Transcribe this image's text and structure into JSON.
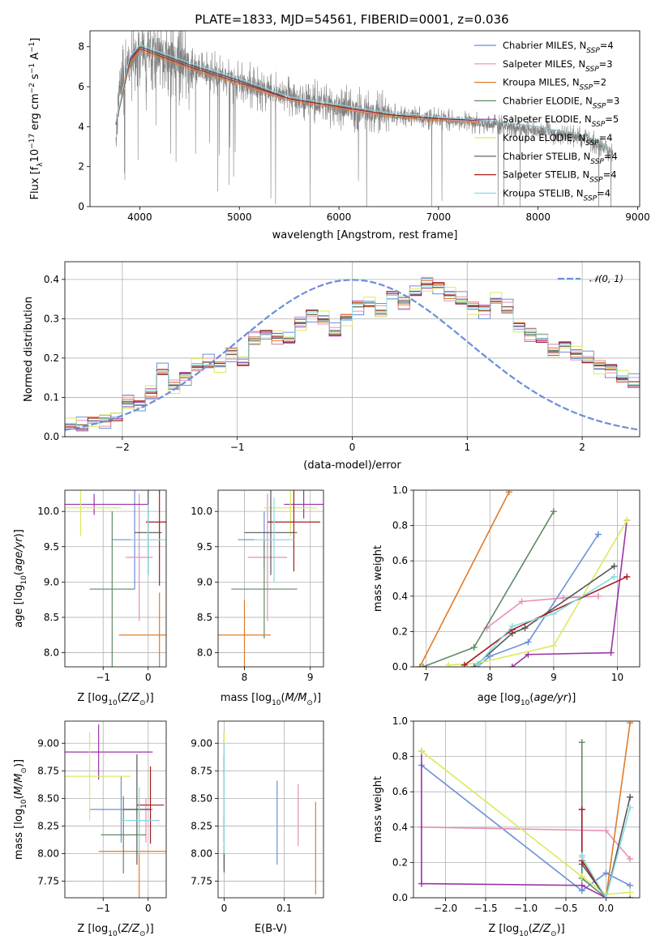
{
  "figure_title": "PLATE=1833, MJD=54561, FIBERID=0001, z=0.036",
  "colors": [
    "#6b8fd8",
    "#e68fb8",
    "#e07b2a",
    "#5f8a63",
    "#9a34a8",
    "#d9ea5e",
    "#555555",
    "#a61c1c",
    "#8adbe3"
  ],
  "chart_data": [
    {
      "id": "spectrum",
      "type": "line",
      "xlabel": "wavelength [Angstrom, rest frame]",
      "ylabel": "Flux [f$_\\lambda$10$^{-17}$ erg cm$^{-2}$ s$^{-1}$ A$^{-1}$]",
      "ylabel_main": "Flux [f",
      "ylabel_parts": [
        "λ",
        "10",
        "−17",
        " erg cm",
        "−2",
        " s",
        "−1",
        " A",
        "−1",
        "]"
      ],
      "xlim": [
        3500,
        9020
      ],
      "ylim": [
        0,
        8.8
      ],
      "xticks": [
        4000,
        5000,
        6000,
        7000,
        8000,
        9000
      ],
      "yticks": [
        0,
        2,
        4,
        6,
        8
      ],
      "legend_placement": "upper-right",
      "data_series": {
        "name": "data",
        "color": "#808080",
        "x": [
          3760,
          3800,
          3900,
          4000,
          4200,
          4500,
          5000,
          5500,
          6000,
          6500,
          7000,
          7400,
          7600,
          8000,
          8500,
          8750
        ],
        "y": [
          3.5,
          6.0,
          7.2,
          8.0,
          7.6,
          7.0,
          6.2,
          5.5,
          5.0,
          4.6,
          4.4,
          4.2,
          4.1,
          3.8,
          3.4,
          2.7
        ]
      },
      "models": [
        {
          "name": "Chabrier MILES",
          "nssp": "4",
          "x": [
            3760,
            3900,
            4000,
            4500,
            5000,
            5500,
            6000,
            6500,
            7000,
            7400
          ],
          "y": [
            4.2,
            7.4,
            8.0,
            7.1,
            6.3,
            5.4,
            5.0,
            4.6,
            4.4,
            4.3
          ]
        },
        {
          "name": "Salpeter MILES",
          "nssp": "3",
          "x": [
            3760,
            3900,
            4000,
            4500,
            5000,
            5500,
            6000,
            6500,
            7000,
            7400
          ],
          "y": [
            4.2,
            7.3,
            7.9,
            7.0,
            6.2,
            5.3,
            4.9,
            4.6,
            4.4,
            4.2
          ]
        },
        {
          "name": "Kroupa MILES",
          "nssp": "2",
          "x": [
            3760,
            3900,
            4000,
            4500,
            5000,
            5500,
            6000,
            6500,
            7000,
            7400
          ],
          "y": [
            4.1,
            7.2,
            7.8,
            6.9,
            6.1,
            5.3,
            4.9,
            4.5,
            4.3,
            4.2
          ]
        },
        {
          "name": "Chabrier ELODIE",
          "nssp": "3",
          "x": [
            3760,
            3900,
            4000,
            4500,
            5000,
            5500,
            6000,
            6500,
            6800
          ],
          "y": [
            4.1,
            7.3,
            7.9,
            7.0,
            6.2,
            5.4,
            5.0,
            4.6,
            4.5
          ]
        },
        {
          "name": "Salpeter ELODIE",
          "nssp": "5",
          "x": [
            3760,
            3900,
            4000,
            4500,
            5000,
            5500,
            6000,
            6500,
            6800
          ],
          "y": [
            4.1,
            7.4,
            8.0,
            7.1,
            6.3,
            5.4,
            5.0,
            4.6,
            4.5
          ]
        },
        {
          "name": "Kroupa ELODIE",
          "nssp": "4",
          "x": [
            3760,
            3900,
            4000,
            4500,
            5000,
            5500,
            6000,
            6500,
            6800
          ],
          "y": [
            4.2,
            7.3,
            7.9,
            7.0,
            6.2,
            5.4,
            5.0,
            4.6,
            4.5
          ]
        },
        {
          "name": "Chabrier STELIB",
          "nssp": "4",
          "x": [
            3760,
            3900,
            4000,
            4500,
            5000,
            5500,
            6000,
            6500,
            7000,
            7500,
            8000,
            8500,
            8750
          ],
          "y": [
            4.2,
            7.3,
            8.0,
            7.1,
            6.3,
            5.4,
            5.0,
            4.6,
            4.4,
            4.3,
            4.0,
            3.5,
            2.8
          ]
        },
        {
          "name": "Salpeter STELIB",
          "nssp": "4",
          "x": [
            3760,
            3900,
            4000,
            4500,
            5000,
            5500,
            6000,
            6500,
            7000,
            7500,
            8000,
            8500,
            8750
          ],
          "y": [
            4.2,
            7.3,
            7.9,
            7.0,
            6.2,
            5.4,
            5.0,
            4.6,
            4.4,
            4.3,
            4.0,
            3.5,
            2.8
          ]
        },
        {
          "name": "Kroupa STELIB",
          "nssp": "4",
          "x": [
            3760,
            3900,
            4000,
            4500,
            5000,
            5500,
            6000,
            6500,
            7000,
            7500,
            8000,
            8500,
            8750
          ],
          "y": [
            4.2,
            7.5,
            8.1,
            7.2,
            6.4,
            5.5,
            5.1,
            4.7,
            4.5,
            4.3,
            4.0,
            3.5,
            2.8
          ]
        }
      ]
    },
    {
      "id": "residuals",
      "type": "histogram",
      "xlabel": "(data-model)/error",
      "ylabel": "Normed distribution",
      "xlim": [
        -2.5,
        2.5
      ],
      "ylim": [
        0,
        0.445
      ],
      "xticks": [
        -2,
        -1,
        0,
        1,
        2
      ],
      "yticks": [
        0.0,
        0.1,
        0.2,
        0.3,
        0.4
      ],
      "grid": true,
      "legend_placement": "upper-right",
      "reference_curve": {
        "name": "𝒩(0, 1)",
        "color": "#6b8fd8"
      },
      "bin_start": -2.5,
      "bin_width": 0.1,
      "base_values": [
        0.03,
        0.03,
        0.04,
        0.04,
        0.05,
        0.09,
        0.08,
        0.11,
        0.17,
        0.13,
        0.15,
        0.18,
        0.19,
        0.18,
        0.21,
        0.19,
        0.25,
        0.26,
        0.25,
        0.25,
        0.29,
        0.31,
        0.3,
        0.27,
        0.3,
        0.33,
        0.34,
        0.32,
        0.36,
        0.34,
        0.37,
        0.39,
        0.38,
        0.36,
        0.35,
        0.33,
        0.32,
        0.35,
        0.33,
        0.28,
        0.26,
        0.25,
        0.22,
        0.23,
        0.21,
        0.2,
        0.18,
        0.17,
        0.15,
        0.14,
        0.12,
        0.11,
        0.09,
        0.08,
        0.06,
        0.05,
        0.04,
        0.03,
        0.03,
        0.02,
        0.02,
        0.02,
        0.01
      ],
      "series_offsets": [
        0.02,
        -0.015,
        0.01,
        -0.01,
        0.015,
        -0.02,
        0.0,
        0.012,
        -0.008
      ]
    },
    {
      "id": "age-vs-Z",
      "type": "errorbar",
      "xlabel": "Z [log$_{10}$(Z/Z$_\\odot$)]",
      "ylabel": "age  [log$_{10}$(age/yr)]",
      "xlim": [
        -1.85,
        0.4
      ],
      "ylim": [
        7.8,
        10.3
      ],
      "xticks": [
        -1,
        0
      ],
      "yticks": [
        8.0,
        8.5,
        9.0,
        9.5,
        10.0
      ],
      "grid": true,
      "points": [
        {
          "x": -0.3,
          "y": 9.6,
          "xerr": 0.5,
          "yerr": 0.7
        },
        {
          "x": -0.2,
          "y": 9.35,
          "xerr": 0.3,
          "yerr": 0.9
        },
        {
          "x": 0.25,
          "y": 8.25,
          "xerr": 0.9,
          "yerr": 0.6
        },
        {
          "x": -0.8,
          "y": 8.9,
          "xerr": 0.5,
          "yerr": 1.1
        },
        {
          "x": -1.2,
          "y": 10.1,
          "xerr": 1.2,
          "yerr": 0.15
        },
        {
          "x": -1.5,
          "y": 10.05,
          "xerr": 0.9,
          "yerr": 0.4
        },
        {
          "x": 0.0,
          "y": 9.7,
          "xerr": 0.3,
          "yerr": 0.6
        },
        {
          "x": 0.25,
          "y": 9.85,
          "xerr": 0.3,
          "yerr": 0.9
        },
        {
          "x": 0.0,
          "y": 9.6,
          "xerr": 0.4,
          "yerr": 0.5
        }
      ]
    },
    {
      "id": "age-vs-mass",
      "type": "errorbar",
      "xlabel": "mass [log$_{10}$(M/M$_\\odot$)]",
      "ylabel": "",
      "xlim": [
        7.6,
        9.2
      ],
      "ylim": [
        7.8,
        10.3
      ],
      "xticks": [
        8,
        9
      ],
      "yticks": [
        8.0,
        8.5,
        9.0,
        9.5,
        10.0
      ],
      "grid": true,
      "points": [
        {
          "x": 8.3,
          "y": 9.6,
          "xerr": 0.4,
          "yerr": 0.4
        },
        {
          "x": 8.35,
          "y": 9.35,
          "xerr": 0.3,
          "yerr": 0.9
        },
        {
          "x": 8.0,
          "y": 8.25,
          "xerr": 0.4,
          "yerr": 0.5
        },
        {
          "x": 8.3,
          "y": 8.9,
          "xerr": 0.5,
          "yerr": 0.7
        },
        {
          "x": 8.9,
          "y": 10.1,
          "xerr": 0.3,
          "yerr": 0.2
        },
        {
          "x": 8.7,
          "y": 10.05,
          "xerr": 0.4,
          "yerr": 0.4
        },
        {
          "x": 8.4,
          "y": 9.7,
          "xerr": 0.4,
          "yerr": 0.6
        },
        {
          "x": 8.75,
          "y": 9.85,
          "xerr": 0.4,
          "yerr": 0.7
        },
        {
          "x": 8.45,
          "y": 9.6,
          "xerr": 0.3,
          "yerr": 0.6
        }
      ]
    },
    {
      "id": "mass-weight-vs-age",
      "type": "line",
      "xlabel": "age  [log$_{10}$(age/yr)]",
      "ylabel": "mass weight",
      "xlim": [
        6.8,
        10.35
      ],
      "ylim": [
        0,
        1.0
      ],
      "xticks": [
        7,
        8,
        9,
        10
      ],
      "yticks": [
        0.0,
        0.2,
        0.4,
        0.6,
        0.8,
        1.0
      ],
      "grid": true,
      "series": [
        {
          "name": "Chabrier MILES",
          "x": [
            7.8,
            8.0,
            8.6,
            9.7
          ],
          "y": [
            0.0,
            0.06,
            0.14,
            0.75
          ]
        },
        {
          "name": "Salpeter MILES",
          "x": [
            7.95,
            8.5,
            9.15,
            9.7
          ],
          "y": [
            0.22,
            0.37,
            0.39,
            0.4
          ]
        },
        {
          "name": "Kroupa MILES",
          "x": [
            6.9,
            8.3
          ],
          "y": [
            0.0,
            0.99
          ]
        },
        {
          "name": "Chabrier ELODIE",
          "x": [
            6.95,
            7.75,
            9.0
          ],
          "y": [
            0.0,
            0.11,
            0.88
          ]
        },
        {
          "name": "Salpeter ELODIE",
          "x": [
            8.35,
            8.6,
            9.9,
            10.15
          ],
          "y": [
            0.0,
            0.07,
            0.08,
            0.83
          ]
        },
        {
          "name": "Kroupa ELODIE",
          "x": [
            7.35,
            7.8,
            9.0,
            10.15
          ],
          "y": [
            0.01,
            0.02,
            0.12,
            0.83
          ]
        },
        {
          "name": "Chabrier STELIB",
          "x": [
            7.75,
            8.35,
            8.55,
            9.95
          ],
          "y": [
            0.0,
            0.19,
            0.22,
            0.57
          ]
        },
        {
          "name": "Salpeter STELIB",
          "x": [
            7.6,
            8.35,
            10.15
          ],
          "y": [
            0.01,
            0.21,
            0.51
          ]
        },
        {
          "name": "Kroupa STELIB",
          "x": [
            7.8,
            8.35,
            9.0,
            9.95
          ],
          "y": [
            0.01,
            0.23,
            0.3,
            0.51
          ]
        }
      ]
    },
    {
      "id": "mass-vs-Z",
      "type": "errorbar",
      "xlabel": "Z [log$_{10}$(Z/Z$_\\odot$)]",
      "ylabel": "mass [log$_{10}$(M/M$_\\odot$)]",
      "xlim": [
        -1.85,
        0.4
      ],
      "ylim": [
        7.6,
        9.2
      ],
      "xticks": [
        -1,
        0
      ],
      "yticks": [
        7.75,
        8.0,
        8.25,
        8.5,
        8.75,
        9.0
      ],
      "grid": true,
      "points": [
        {
          "x": -0.6,
          "y": 8.4,
          "xerr": 0.7,
          "yerr": 0.3
        },
        {
          "x": -0.05,
          "y": 8.3,
          "xerr": 0.3,
          "yerr": 0.2
        },
        {
          "x": -0.2,
          "y": 8.02,
          "xerr": 0.9,
          "yerr": 0.45
        },
        {
          "x": -0.55,
          "y": 8.17,
          "xerr": 0.5,
          "yerr": 0.35
        },
        {
          "x": -1.1,
          "y": 8.92,
          "xerr": 1.2,
          "yerr": 0.25
        },
        {
          "x": -1.3,
          "y": 8.7,
          "xerr": 0.9,
          "yerr": 0.4
        },
        {
          "x": -0.25,
          "y": 8.4,
          "xerr": 0.3,
          "yerr": 0.5
        },
        {
          "x": 0.05,
          "y": 8.44,
          "xerr": 0.3,
          "yerr": 0.35
        },
        {
          "x": -0.2,
          "y": 8.3,
          "xerr": 0.4,
          "yerr": 0.3
        }
      ]
    },
    {
      "id": "mass-vs-EBV",
      "type": "errorbar",
      "xlabel": "E(B-V)",
      "ylabel": "",
      "xlim": [
        -0.01,
        0.165
      ],
      "ylim": [
        7.6,
        9.2
      ],
      "xticks": [
        0.0,
        0.1
      ],
      "yticks": [
        7.75,
        8.0,
        8.25,
        8.5,
        8.75,
        9.0
      ],
      "grid": true,
      "points": [
        {
          "x": 0.088,
          "y": 8.28,
          "xerr": 0.0,
          "yerr": 0.38
        },
        {
          "x": 0.123,
          "y": 8.35,
          "xerr": 0.0,
          "yerr": 0.28
        },
        {
          "x": 0.152,
          "y": 8.05,
          "xerr": 0.0,
          "yerr": 0.42
        },
        {
          "x": 0.0,
          "y": 8.1,
          "xerr": 0.0,
          "yerr": 0.25
        },
        {
          "x": 0.0,
          "y": 8.9,
          "xerr": 0.0,
          "yerr": 0.2
        },
        {
          "x": 0.0,
          "y": 8.8,
          "xerr": 0.0,
          "yerr": 0.3
        },
        {
          "x": 0.0,
          "y": 7.95,
          "xerr": 0.0,
          "yerr": 0.12
        },
        {
          "x": 0.0,
          "y": 8.5,
          "xerr": 0.0,
          "yerr": 0.4
        },
        {
          "x": 0.0,
          "y": 8.5,
          "xerr": 0.0,
          "yerr": 0.5
        }
      ]
    },
    {
      "id": "mass-weight-vs-Z",
      "type": "line",
      "xlabel": "Z [log$_{10}$(Z/Z$_\\odot$)]",
      "ylabel": "mass weight",
      "xlim": [
        -2.4,
        0.42
      ],
      "ylim": [
        0,
        1.0
      ],
      "xticks": [
        -2.0,
        -1.5,
        -1.0,
        -0.5,
        0.0
      ],
      "yticks": [
        0.0,
        0.2,
        0.4,
        0.6,
        0.8,
        1.0
      ],
      "grid": true,
      "series": [
        {
          "name": "Chabrier MILES",
          "x": [
            -2.3,
            -0.3,
            0.0,
            0.3
          ],
          "y": [
            0.75,
            0.04,
            0.14,
            0.07
          ]
        },
        {
          "name": "Salpeter MILES",
          "x": [
            -2.3,
            0.0,
            0.3
          ],
          "y": [
            0.4,
            0.38,
            0.22
          ]
        },
        {
          "name": "Kroupa MILES",
          "x": [
            0.0,
            0.3
          ],
          "y": [
            0.0,
            0.99
          ]
        },
        {
          "name": "Chabrier ELODIE",
          "x": [
            -0.3,
            -0.3,
            0.0
          ],
          "y": [
            0.88,
            0.11,
            0.0
          ]
        },
        {
          "name": "Salpeter ELODIE",
          "x": [
            -2.3,
            -2.3,
            -0.3,
            0.0,
            0.3
          ],
          "y": [
            0.83,
            0.08,
            0.07,
            0.0,
            0.0
          ]
        },
        {
          "name": "Kroupa ELODIE",
          "x": [
            -2.3,
            -0.3,
            0.0,
            0.3
          ],
          "y": [
            0.83,
            0.12,
            0.02,
            0.03
          ]
        },
        {
          "name": "Chabrier STELIB",
          "x": [
            -0.3,
            0.0,
            0.3
          ],
          "y": [
            0.19,
            0.0,
            0.57
          ]
        },
        {
          "name": "Salpeter STELIB",
          "x": [
            -0.3,
            -0.3,
            0.0
          ],
          "y": [
            0.5,
            0.21,
            0.0
          ]
        },
        {
          "name": "Kroupa STELIB",
          "x": [
            -0.3,
            -0.3,
            0.0,
            0.3
          ],
          "y": [
            0.24,
            0.23,
            0.0,
            0.51
          ]
        }
      ]
    }
  ]
}
